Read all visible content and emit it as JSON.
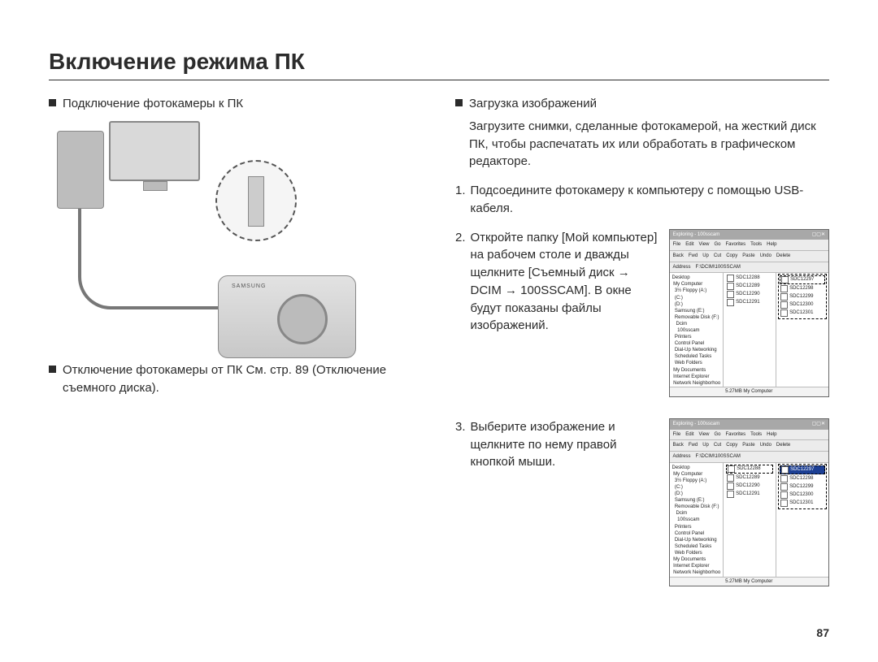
{
  "title": "Включение режима ПК",
  "left": {
    "connect_heading": "Подключение фотокамеры к ПК",
    "disconnect_text": "Отключение фотокамеры от ПК См. стр. 89 (Отключение съемного диска)."
  },
  "right": {
    "download_heading": "Загрузка изображений",
    "download_body": "Загрузите снимки, сделанные фотокамерой, на жесткий диск ПК, чтобы распечатать их или обработать в графическом редакторе.",
    "step1_num": "1.",
    "step1_text": "Подсоедините фотокамеру к компьютеру с помощью USB-кабеля.",
    "step2_num": "2.",
    "step2_text": "Откройте папку [Мой компьютер] на рабочем столе и дважды щелкните [Съемный диск → DCIM → 100SSCAM]. В окне будут показаны файлы изображений.",
    "step3_num": "3.",
    "step3_text": "Выберите изображение и щелкните по нему правой кнопкой мыши."
  },
  "explorer": {
    "title": "Exploring - 100sscam",
    "menus": [
      "File",
      "Edit",
      "View",
      "Go",
      "Favorites",
      "Tools",
      "Help"
    ],
    "toolbar": [
      "Back",
      "Fwd",
      "Up",
      "Cut",
      "Copy",
      "Paste",
      "Undo",
      "Delete"
    ],
    "address_label": "Address",
    "address_value": "F:\\DCIM\\100SSCAM",
    "tree_label": "Folders",
    "tree_items": [
      "Desktop",
      " My Computer",
      "  3½ Floppy (A:)",
      "  (C:)",
      "  (D:)",
      "  Samsung (E:)",
      "  Removable Disk (F:)",
      "   Dcim",
      "    100sscam",
      "  Printers",
      "  Control Panel",
      "  Dial-Up Networking",
      "  Scheduled Tasks",
      "  Web Folders",
      " My Documents",
      " Internet Explorer",
      " Network Neighborhood",
      " Recycle Bin"
    ],
    "files_a": [
      "SDC12288",
      "SDC12289",
      "SDC12290",
      "SDC12291"
    ],
    "files_b": [
      "SDC12297",
      "SDC12298",
      "SDC12299",
      "SDC12300",
      "SDC12301"
    ],
    "status": "5.27MB   My Computer"
  },
  "page_number": "87",
  "colors": {
    "text": "#2b2b2b",
    "rule": "#2b2b2b",
    "illus_gray": "#bdbdbd"
  }
}
